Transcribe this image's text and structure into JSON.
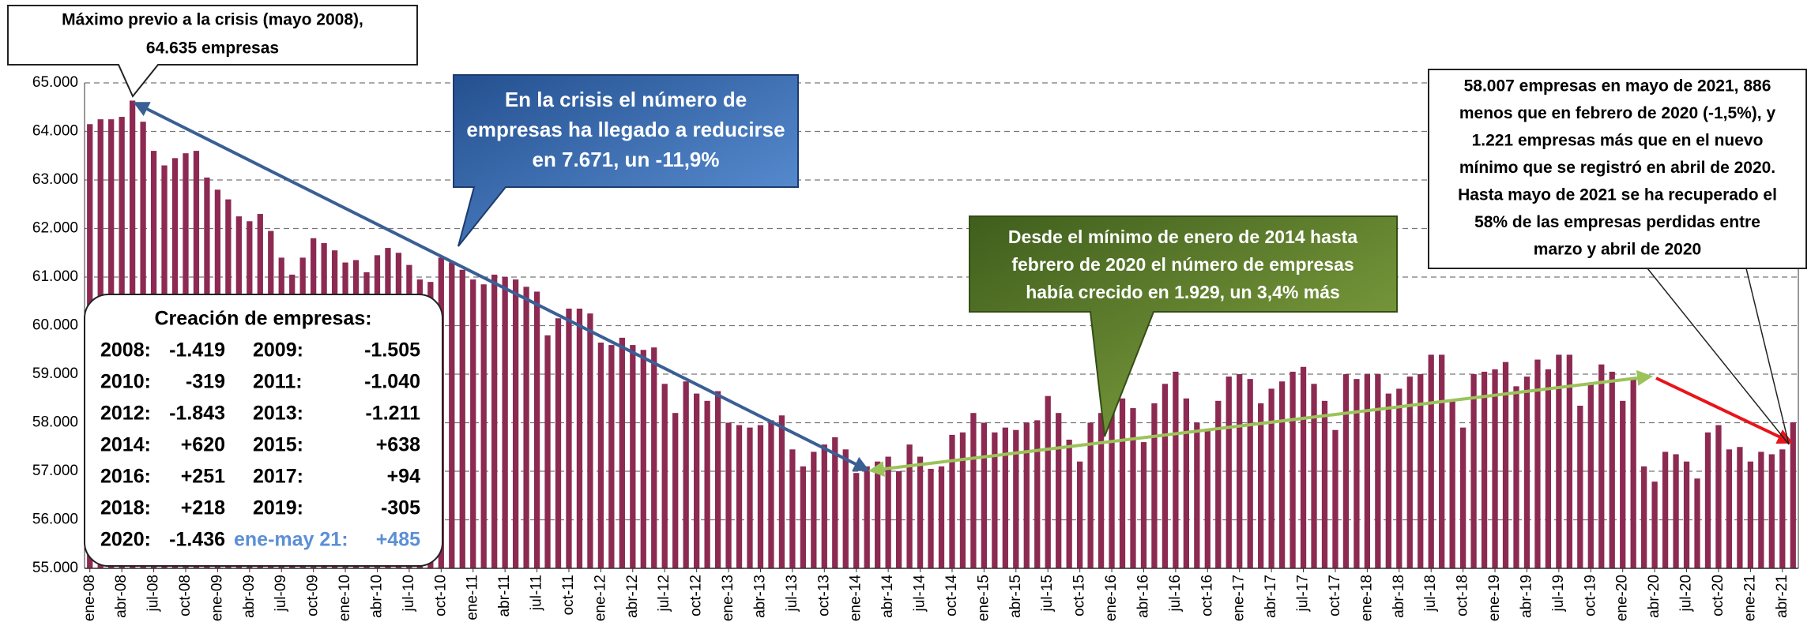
{
  "chart_data": {
    "type": "bar",
    "color": "#8c2a52",
    "grid": true,
    "categories": [
      "ene-08",
      null,
      null,
      "abr-08",
      null,
      null,
      "jul-08",
      null,
      null,
      "oct-08",
      null,
      null,
      "ene-09",
      null,
      null,
      "abr-09",
      null,
      null,
      "jul-09",
      null,
      null,
      "oct-09",
      null,
      null,
      "ene-10",
      null,
      null,
      "abr-10",
      null,
      null,
      "jul-10",
      null,
      null,
      "oct-10",
      null,
      null,
      "ene-11",
      null,
      null,
      "abr-11",
      null,
      null,
      "jul-11",
      null,
      null,
      "oct-11",
      null,
      null,
      "ene-12",
      null,
      null,
      "abr-12",
      null,
      null,
      "jul-12",
      null,
      null,
      "oct-12",
      null,
      null,
      "ene-13",
      null,
      null,
      "abr-13",
      null,
      null,
      "jul-13",
      null,
      null,
      "oct-13",
      null,
      null,
      "ene-14",
      null,
      null,
      "abr-14",
      null,
      null,
      "jul-14",
      null,
      null,
      "oct-14",
      null,
      null,
      "ene-15",
      null,
      null,
      "abr-15",
      null,
      null,
      "jul-15",
      null,
      null,
      "oct-15",
      null,
      null,
      "ene-16",
      null,
      null,
      "abr-16",
      null,
      null,
      "jul-16",
      null,
      null,
      "oct-16",
      null,
      null,
      "ene-17",
      null,
      null,
      "abr-17",
      null,
      null,
      "jul-17",
      null,
      null,
      "oct-17",
      null,
      null,
      "ene-18",
      null,
      null,
      "abr-18",
      null,
      null,
      "jul-18",
      null,
      null,
      "oct-18",
      null,
      null,
      "ene-19",
      null,
      null,
      "abr-19",
      null,
      null,
      "jul-19",
      null,
      null,
      "oct-19",
      null,
      null,
      "ene-20",
      null,
      null,
      "abr-20",
      null,
      null,
      "jul-20",
      null,
      null,
      "oct-20",
      null,
      null,
      "ene-21",
      null,
      null,
      "abr-21",
      null
    ],
    "values": [
      64150,
      64250,
      64250,
      64300,
      64635,
      64200,
      63600,
      63300,
      63450,
      63550,
      63600,
      63050,
      62800,
      62600,
      62250,
      62150,
      62300,
      61950,
      61400,
      61050,
      61400,
      61800,
      61700,
      61550,
      61300,
      61350,
      61100,
      61450,
      61600,
      61500,
      61250,
      60950,
      60900,
      61400,
      61300,
      61150,
      60950,
      60850,
      61050,
      61000,
      60950,
      60800,
      60700,
      59800,
      60150,
      60350,
      60350,
      60250,
      59650,
      59600,
      59750,
      59600,
      59500,
      59550,
      58800,
      58200,
      58850,
      58600,
      58450,
      58650,
      58000,
      57950,
      57900,
      57950,
      58050,
      58150,
      57450,
      57100,
      57400,
      57550,
      57700,
      57450,
      56964,
      57100,
      57200,
      57300,
      57000,
      57550,
      57300,
      57050,
      57100,
      57750,
      57800,
      58200,
      58000,
      57800,
      57900,
      57850,
      58000,
      58050,
      58550,
      58200,
      57650,
      57200,
      58000,
      58200,
      58600,
      58500,
      58300,
      57600,
      58400,
      58800,
      59050,
      58500,
      58000,
      57850,
      58450,
      58950,
      59000,
      58900,
      58400,
      58700,
      58850,
      59050,
      59150,
      58800,
      58450,
      57850,
      59000,
      58900,
      59000,
      59000,
      58600,
      58700,
      58950,
      59000,
      59400,
      59400,
      58450,
      57900,
      59000,
      59050,
      59100,
      59250,
      58750,
      58950,
      59300,
      59100,
      59400,
      59400,
      58350,
      58800,
      59200,
      59050,
      58450,
      58893,
      57100,
      56786,
      57400,
      57350,
      57200,
      56850,
      57800,
      57950,
      57450,
      57500,
      57200,
      57400,
      57350,
      57450,
      58007
    ],
    "ylim": [
      55000,
      65000
    ],
    "yticks": [
      {
        "value": 55000,
        "label": "55.000"
      },
      {
        "value": 56000,
        "label": "56.000"
      },
      {
        "value": 57000,
        "label": "57.000"
      },
      {
        "value": 58000,
        "label": "58.000"
      },
      {
        "value": 59000,
        "label": "59.000"
      },
      {
        "value": 60000,
        "label": "60.000"
      },
      {
        "value": 61000,
        "label": "61.000"
      },
      {
        "value": 62000,
        "label": "62.000"
      },
      {
        "value": 63000,
        "label": "63.000"
      },
      {
        "value": 64000,
        "label": "64.000"
      },
      {
        "value": 65000,
        "label": "65.000"
      }
    ],
    "annotations": [
      {
        "lines": [
          "Máximo previo a la crisis (mayo 2008),",
          "64.635  empresas"
        ]
      },
      {
        "lines": [
          "En la crisis el número de",
          "empresas ha llegado a reducirse",
          "en 7.671, un -11,9%"
        ]
      },
      {
        "lines": [
          "Desde el mínimo de enero de 2014  hasta",
          "febrero de 2020 el número de empresas",
          "había crecido en 1.929, un 3,4% más"
        ]
      },
      {
        "lines": [
          "58.007  empresas en mayo de 2021,  886",
          "menos que en febrero de 2020 (-1,5%), y",
          "1.221 empresas más que en el nuevo",
          "mínimo que se registró en abril de 2020.",
          "Hasta mayo de 2021 se ha recuperado el",
          "58% de las empresas perdidas entre",
          "marzo y abril de 2020"
        ]
      }
    ],
    "summary": {
      "title": "Creación de empresas:",
      "rows": [
        [
          {
            "year": "2008:",
            "value": "-1.419"
          },
          {
            "year": "2009:",
            "value": "-1.505"
          }
        ],
        [
          {
            "year": "2010:",
            "value": "-319"
          },
          {
            "year": "2011:",
            "value": "-1.040"
          }
        ],
        [
          {
            "year": "2012:",
            "value": "-1.843"
          },
          {
            "year": "2013:",
            "value": "-1.211"
          }
        ],
        [
          {
            "year": "2014:",
            "value": "+620"
          },
          {
            "year": "2015:",
            "value": "+638"
          }
        ],
        [
          {
            "year": "2016:",
            "value": "+251"
          },
          {
            "year": "2017:",
            "value": "+94"
          }
        ],
        [
          {
            "year": "2018:",
            "value": "+218"
          },
          {
            "year": "2019:",
            "value": "-305"
          }
        ],
        [
          {
            "year": "2020:",
            "value": "-1.436"
          },
          {
            "year": "ene-may 21:",
            "value": "+485"
          }
        ]
      ]
    }
  }
}
